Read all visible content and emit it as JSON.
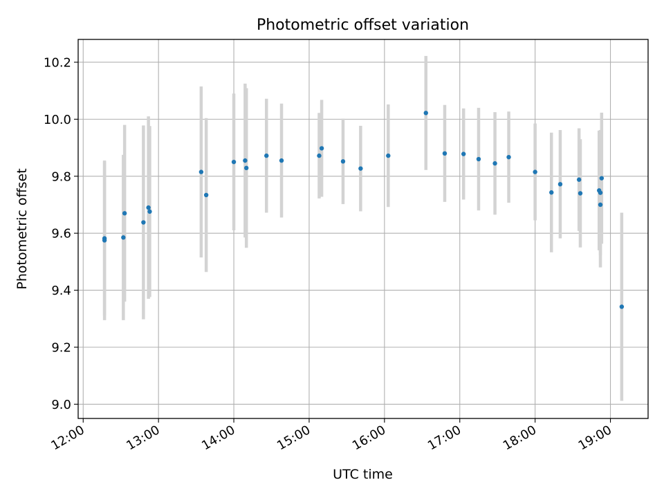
{
  "chart_data": {
    "type": "scatter",
    "title": "Photometric offset variation",
    "xlabel": "UTC time",
    "ylabel": "Photometric offset",
    "xlim": [
      "11:56",
      "19:30"
    ],
    "ylim": [
      8.95,
      10.28
    ],
    "x_ticks": [
      "12:00",
      "13:00",
      "14:00",
      "15:00",
      "16:00",
      "17:00",
      "18:00",
      "19:00"
    ],
    "y_ticks": [
      "9.0",
      "9.2",
      "9.4",
      "9.6",
      "9.8",
      "10.0",
      "10.2"
    ],
    "grid": true,
    "point_color": "#1f77b4",
    "errorbar_color": "#d3d3d3",
    "points": [
      {
        "time": "12:17",
        "y": 9.575,
        "err": 0.28
      },
      {
        "time": "12:17",
        "y": 9.582,
        "err": 0.27
      },
      {
        "time": "12:32",
        "y": 9.585,
        "err": 0.29
      },
      {
        "time": "12:33",
        "y": 9.67,
        "err": 0.31
      },
      {
        "time": "12:48",
        "y": 9.638,
        "err": 0.34
      },
      {
        "time": "12:52",
        "y": 9.69,
        "err": 0.32
      },
      {
        "time": "12:53",
        "y": 9.676,
        "err": 0.3
      },
      {
        "time": "13:34",
        "y": 9.815,
        "err": 0.3
      },
      {
        "time": "13:38",
        "y": 9.734,
        "err": 0.27
      },
      {
        "time": "14:00",
        "y": 9.85,
        "err": 0.24
      },
      {
        "time": "14:09",
        "y": 9.855,
        "err": 0.27
      },
      {
        "time": "14:10",
        "y": 9.829,
        "err": 0.28
      },
      {
        "time": "14:26",
        "y": 9.872,
        "err": 0.2
      },
      {
        "time": "14:38",
        "y": 9.855,
        "err": 0.2
      },
      {
        "time": "15:08",
        "y": 9.872,
        "err": 0.15
      },
      {
        "time": "15:10",
        "y": 9.898,
        "err": 0.17
      },
      {
        "time": "15:27",
        "y": 9.852,
        "err": 0.15
      },
      {
        "time": "15:41",
        "y": 9.827,
        "err": 0.15
      },
      {
        "time": "16:03",
        "y": 9.872,
        "err": 0.18
      },
      {
        "time": "16:33",
        "y": 10.022,
        "err": 0.2
      },
      {
        "time": "16:48",
        "y": 9.88,
        "err": 0.17
      },
      {
        "time": "17:03",
        "y": 9.878,
        "err": 0.16
      },
      {
        "time": "17:15",
        "y": 9.86,
        "err": 0.18
      },
      {
        "time": "17:28",
        "y": 9.845,
        "err": 0.18
      },
      {
        "time": "17:39",
        "y": 9.867,
        "err": 0.16
      },
      {
        "time": "18:00",
        "y": 9.815,
        "err": 0.17
      },
      {
        "time": "18:13",
        "y": 9.743,
        "err": 0.21
      },
      {
        "time": "18:20",
        "y": 9.772,
        "err": 0.19
      },
      {
        "time": "18:35",
        "y": 9.788,
        "err": 0.18
      },
      {
        "time": "18:36",
        "y": 9.74,
        "err": 0.19
      },
      {
        "time": "18:51",
        "y": 9.75,
        "err": 0.21
      },
      {
        "time": "18:52",
        "y": 9.742,
        "err": 0.22
      },
      {
        "time": "18:52",
        "y": 9.7,
        "err": 0.22
      },
      {
        "time": "18:53",
        "y": 9.793,
        "err": 0.23
      },
      {
        "time": "19:09",
        "y": 9.342,
        "err": 0.33
      }
    ]
  }
}
